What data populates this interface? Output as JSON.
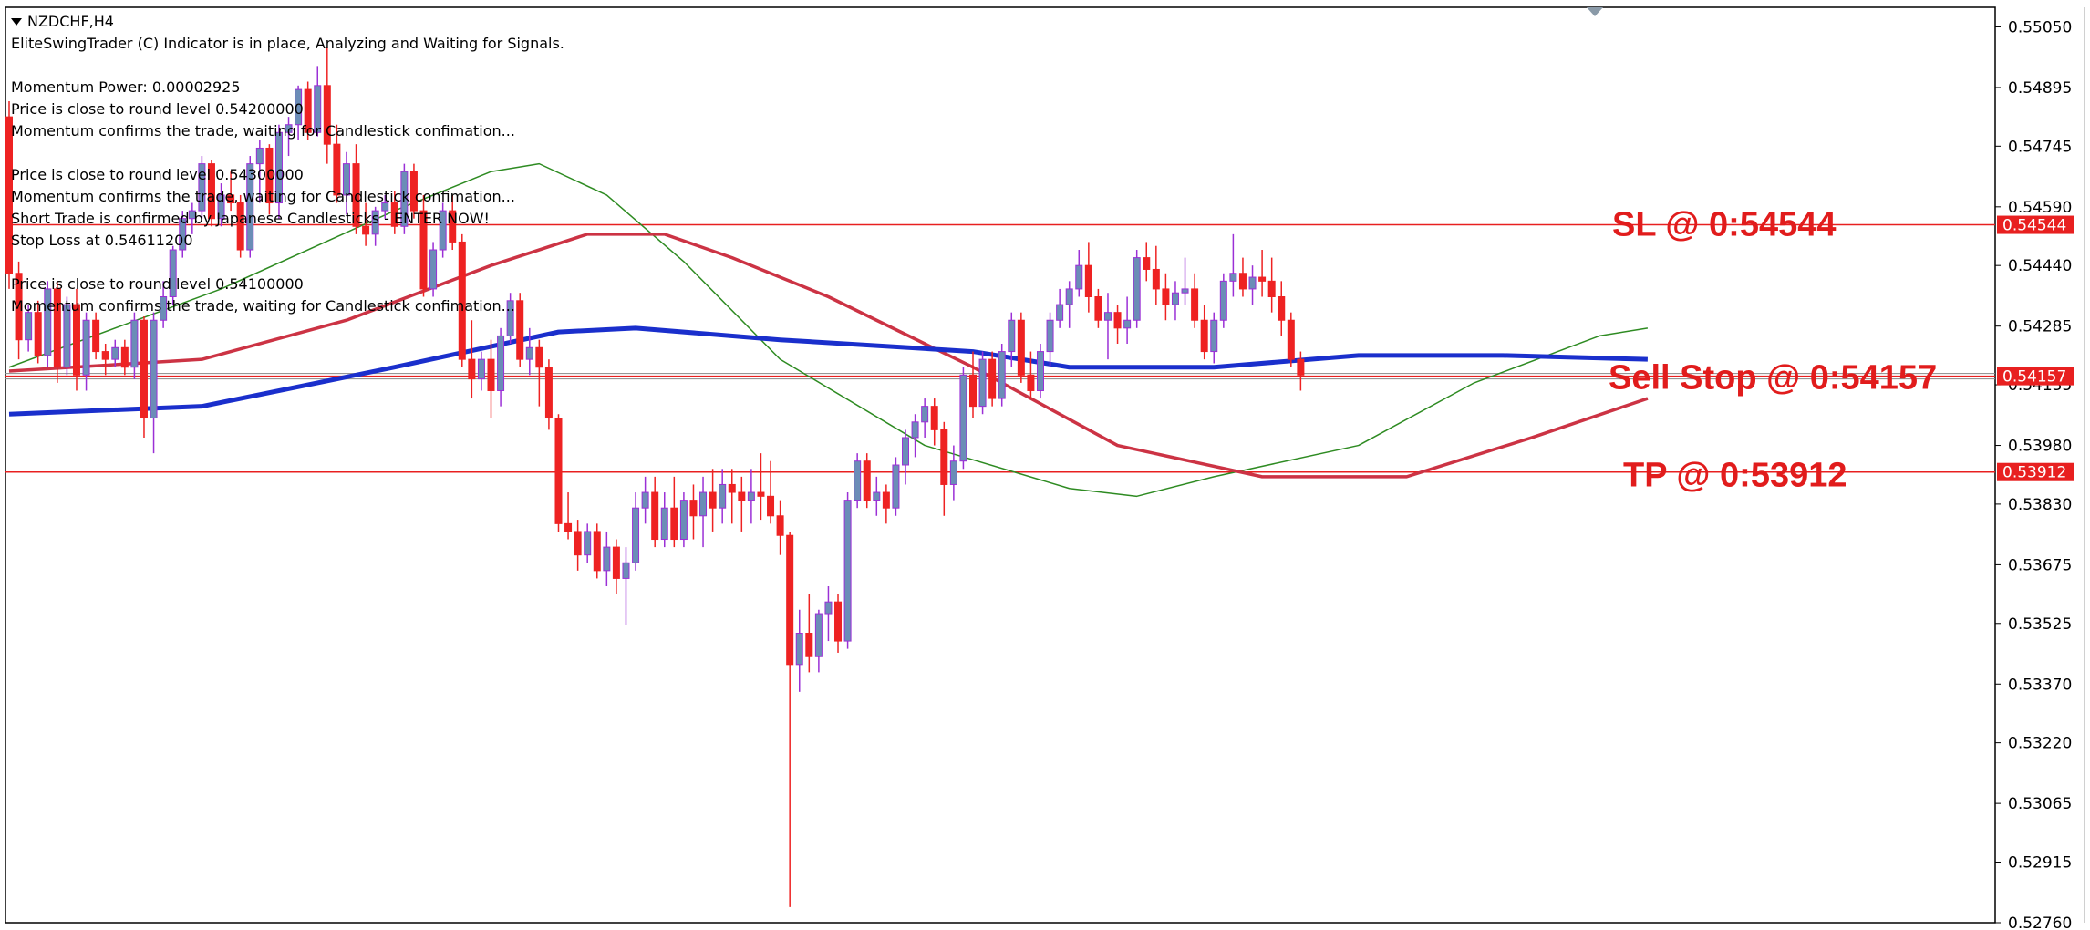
{
  "window": {
    "symbol": "NZDCHF,H4",
    "symbol_icon": "triangle-down-icon"
  },
  "info_lines": {
    "l1": "EliteSwingTrader (C) Indicator is in place, Analyzing and Waiting for Signals.",
    "l2": "Momentum Power: 0.00002925",
    "l3": "Price is close to round level 0.54200000",
    "l4": "Momentum confirms the trade, waiting for Candlestick confimation...",
    "l5": "Price is close to round level 0.54300000",
    "l6": "Momentum confirms the trade, waiting for Candlestick confimation...",
    "l7": "Short Trade is confirmed by Japanese Candlesticks - ENTER NOW!",
    "l8": "Stop Loss at 0.54611200",
    "l9": "Price is close to round level 0.54100000",
    "l10": "Momentum confirms the trade, waiting for Candlestick confimation..."
  },
  "chart_data": {
    "type": "candlestick",
    "symbol": "NZDCHF",
    "timeframe": "H4",
    "ylim": [
      0.5276,
      0.551
    ],
    "y_ticks": [
      "0.55050",
      "0.54895",
      "0.54745",
      "0.54590",
      "0.54440",
      "0.54285",
      "0.54135",
      "0.53980",
      "0.53830",
      "0.53675",
      "0.53525",
      "0.53370",
      "0.53220",
      "0.53065",
      "0.52915",
      "0.52760"
    ],
    "levels": [
      {
        "name": "SL",
        "label": "SL @ 0:54544",
        "value": 0.54544,
        "price_tag": "0.54544"
      },
      {
        "name": "Sell Stop",
        "label": "Sell Stop @ 0:54157",
        "value": 0.54157,
        "price_tag": "0.54157"
      },
      {
        "name": "TP",
        "label": "TP @ 0:53912",
        "value": 0.53912,
        "price_tag": "0.53912"
      }
    ],
    "candles": [
      [
        0.5482,
        0.5486,
        0.5438,
        0.5442
      ],
      [
        0.5442,
        0.5445,
        0.542,
        0.5425
      ],
      [
        0.5425,
        0.5434,
        0.5422,
        0.5432
      ],
      [
        0.5432,
        0.5435,
        0.5419,
        0.5421
      ],
      [
        0.5421,
        0.544,
        0.5418,
        0.5438
      ],
      [
        0.5438,
        0.544,
        0.5414,
        0.5418
      ],
      [
        0.5418,
        0.5436,
        0.5416,
        0.5434
      ],
      [
        0.5434,
        0.5438,
        0.5412,
        0.5416
      ],
      [
        0.5416,
        0.5432,
        0.5412,
        0.543
      ],
      [
        0.543,
        0.5432,
        0.542,
        0.5422
      ],
      [
        0.5422,
        0.5424,
        0.5416,
        0.542
      ],
      [
        0.542,
        0.5425,
        0.5418,
        0.5423
      ],
      [
        0.5423,
        0.5425,
        0.5416,
        0.5418
      ],
      [
        0.5418,
        0.5432,
        0.5415,
        0.543
      ],
      [
        0.543,
        0.5431,
        0.54,
        0.5405
      ],
      [
        0.5405,
        0.5432,
        0.5396,
        0.543
      ],
      [
        0.543,
        0.544,
        0.5428,
        0.5436
      ],
      [
        0.5436,
        0.5449,
        0.5434,
        0.5448
      ],
      [
        0.5448,
        0.5458,
        0.5446,
        0.5456
      ],
      [
        0.5456,
        0.546,
        0.5452,
        0.5458
      ],
      [
        0.5458,
        0.5472,
        0.5456,
        0.547
      ],
      [
        0.547,
        0.5471,
        0.5454,
        0.5456
      ],
      [
        0.5456,
        0.5465,
        0.5454,
        0.5462
      ],
      [
        0.5462,
        0.5468,
        0.5458,
        0.546
      ],
      [
        0.546,
        0.5462,
        0.5446,
        0.5448
      ],
      [
        0.5448,
        0.5472,
        0.5446,
        0.547
      ],
      [
        0.547,
        0.5476,
        0.546,
        0.5474
      ],
      [
        0.5474,
        0.5475,
        0.5457,
        0.546
      ],
      [
        0.546,
        0.548,
        0.5456,
        0.5478
      ],
      [
        0.5478,
        0.5482,
        0.5472,
        0.548
      ],
      [
        0.548,
        0.549,
        0.5476,
        0.5489
      ],
      [
        0.5489,
        0.5491,
        0.5476,
        0.5478
      ],
      [
        0.5478,
        0.5495,
        0.5477,
        0.549
      ],
      [
        0.549,
        0.55,
        0.547,
        0.5475
      ],
      [
        0.5475,
        0.548,
        0.546,
        0.5462
      ],
      [
        0.5462,
        0.5473,
        0.5457,
        0.547
      ],
      [
        0.547,
        0.5475,
        0.5452,
        0.5454
      ],
      [
        0.5454,
        0.546,
        0.5449,
        0.5452
      ],
      [
        0.5452,
        0.5459,
        0.5449,
        0.5458
      ],
      [
        0.5458,
        0.5462,
        0.5456,
        0.546
      ],
      [
        0.546,
        0.5463,
        0.5452,
        0.5454
      ],
      [
        0.5454,
        0.547,
        0.5452,
        0.5468
      ],
      [
        0.5468,
        0.547,
        0.5456,
        0.5458
      ],
      [
        0.5458,
        0.5462,
        0.5436,
        0.5438
      ],
      [
        0.5438,
        0.545,
        0.5436,
        0.5448
      ],
      [
        0.5448,
        0.546,
        0.5446,
        0.5458
      ],
      [
        0.5458,
        0.5462,
        0.5448,
        0.545
      ],
      [
        0.545,
        0.5452,
        0.5418,
        0.542
      ],
      [
        0.542,
        0.543,
        0.541,
        0.5415
      ],
      [
        0.5415,
        0.5422,
        0.5412,
        0.542
      ],
      [
        0.542,
        0.5425,
        0.5405,
        0.5412
      ],
      [
        0.5412,
        0.5428,
        0.5408,
        0.5426
      ],
      [
        0.5426,
        0.5437,
        0.5424,
        0.5435
      ],
      [
        0.5435,
        0.5437,
        0.5418,
        0.542
      ],
      [
        0.542,
        0.5428,
        0.5416,
        0.5423
      ],
      [
        0.5423,
        0.5425,
        0.5408,
        0.5418
      ],
      [
        0.5418,
        0.542,
        0.5402,
        0.5405
      ],
      [
        0.5405,
        0.5406,
        0.5376,
        0.5378
      ],
      [
        0.5378,
        0.5386,
        0.5374,
        0.5376
      ],
      [
        0.5376,
        0.5379,
        0.5366,
        0.537
      ],
      [
        0.537,
        0.5378,
        0.5368,
        0.5376
      ],
      [
        0.5376,
        0.5378,
        0.5364,
        0.5366
      ],
      [
        0.5366,
        0.5376,
        0.5362,
        0.5372
      ],
      [
        0.5372,
        0.5374,
        0.536,
        0.5364
      ],
      [
        0.5364,
        0.5372,
        0.5352,
        0.5368
      ],
      [
        0.5368,
        0.5386,
        0.5366,
        0.5382
      ],
      [
        0.5382,
        0.539,
        0.5378,
        0.5386
      ],
      [
        0.5386,
        0.539,
        0.5372,
        0.5374
      ],
      [
        0.5374,
        0.5386,
        0.5372,
        0.5382
      ],
      [
        0.5382,
        0.539,
        0.5372,
        0.5374
      ],
      [
        0.5374,
        0.5386,
        0.5372,
        0.5384
      ],
      [
        0.5384,
        0.5388,
        0.5374,
        0.538
      ],
      [
        0.538,
        0.539,
        0.5372,
        0.5386
      ],
      [
        0.5386,
        0.5392,
        0.5376,
        0.5382
      ],
      [
        0.5382,
        0.5392,
        0.5378,
        0.5388
      ],
      [
        0.5388,
        0.5392,
        0.5378,
        0.5386
      ],
      [
        0.5386,
        0.539,
        0.5376,
        0.5384
      ],
      [
        0.5384,
        0.5392,
        0.5378,
        0.5386
      ],
      [
        0.5386,
        0.5396,
        0.5379,
        0.5385
      ],
      [
        0.5385,
        0.5394,
        0.5378,
        0.538
      ],
      [
        0.538,
        0.5384,
        0.537,
        0.5375
      ],
      [
        0.5375,
        0.5376,
        0.528,
        0.5342
      ],
      [
        0.5342,
        0.5356,
        0.5335,
        0.535
      ],
      [
        0.535,
        0.536,
        0.534,
        0.5344
      ],
      [
        0.5344,
        0.5356,
        0.534,
        0.5355
      ],
      [
        0.5355,
        0.5362,
        0.5348,
        0.5358
      ],
      [
        0.5358,
        0.536,
        0.5345,
        0.5348
      ],
      [
        0.5348,
        0.5386,
        0.5346,
        0.5384
      ],
      [
        0.5384,
        0.5396,
        0.5382,
        0.5394
      ],
      [
        0.5394,
        0.5396,
        0.5382,
        0.5384
      ],
      [
        0.5384,
        0.539,
        0.538,
        0.5386
      ],
      [
        0.5386,
        0.5388,
        0.5378,
        0.5382
      ],
      [
        0.5382,
        0.5395,
        0.538,
        0.5393
      ],
      [
        0.5393,
        0.5402,
        0.5388,
        0.54
      ],
      [
        0.54,
        0.5406,
        0.5395,
        0.5404
      ],
      [
        0.5404,
        0.541,
        0.54,
        0.5408
      ],
      [
        0.5408,
        0.541,
        0.5398,
        0.5402
      ],
      [
        0.5402,
        0.5404,
        0.538,
        0.5388
      ],
      [
        0.5388,
        0.5398,
        0.5384,
        0.5394
      ],
      [
        0.5394,
        0.5418,
        0.5392,
        0.5416
      ],
      [
        0.5416,
        0.5422,
        0.5405,
        0.5408
      ],
      [
        0.5408,
        0.5422,
        0.5406,
        0.542
      ],
      [
        0.542,
        0.5422,
        0.5408,
        0.541
      ],
      [
        0.541,
        0.5424,
        0.5408,
        0.5422
      ],
      [
        0.5422,
        0.5432,
        0.5418,
        0.543
      ],
      [
        0.543,
        0.5432,
        0.5414,
        0.5416
      ],
      [
        0.5416,
        0.5422,
        0.541,
        0.5412
      ],
      [
        0.5412,
        0.5424,
        0.541,
        0.5422
      ],
      [
        0.5422,
        0.5432,
        0.5418,
        0.543
      ],
      [
        0.543,
        0.5438,
        0.5428,
        0.5434
      ],
      [
        0.5434,
        0.544,
        0.5428,
        0.5438
      ],
      [
        0.5438,
        0.5448,
        0.5436,
        0.5444
      ],
      [
        0.5444,
        0.545,
        0.5432,
        0.5436
      ],
      [
        0.5436,
        0.5438,
        0.5428,
        0.543
      ],
      [
        0.543,
        0.5437,
        0.542,
        0.5432
      ],
      [
        0.5432,
        0.5434,
        0.5424,
        0.5428
      ],
      [
        0.5428,
        0.5436,
        0.5424,
        0.543
      ],
      [
        0.543,
        0.5448,
        0.5428,
        0.5446
      ],
      [
        0.5446,
        0.545,
        0.544,
        0.5443
      ],
      [
        0.5443,
        0.5449,
        0.5434,
        0.5438
      ],
      [
        0.5438,
        0.5442,
        0.543,
        0.5434
      ],
      [
        0.5434,
        0.544,
        0.543,
        0.5437
      ],
      [
        0.5437,
        0.5446,
        0.5434,
        0.5438
      ],
      [
        0.5438,
        0.5442,
        0.5428,
        0.543
      ],
      [
        0.543,
        0.5434,
        0.542,
        0.5422
      ],
      [
        0.5422,
        0.5432,
        0.5419,
        0.543
      ],
      [
        0.543,
        0.5442,
        0.5428,
        0.544
      ],
      [
        0.544,
        0.5452,
        0.5436,
        0.5442
      ],
      [
        0.5442,
        0.5446,
        0.5436,
        0.5438
      ],
      [
        0.5438,
        0.5444,
        0.5434,
        0.5441
      ],
      [
        0.5441,
        0.5448,
        0.5436,
        0.544
      ],
      [
        0.544,
        0.5446,
        0.5432,
        0.5436
      ],
      [
        0.5436,
        0.544,
        0.5426,
        0.543
      ],
      [
        0.543,
        0.5432,
        0.5418,
        0.542
      ],
      [
        0.542,
        0.5422,
        0.5412,
        0.5416
      ]
    ],
    "moving_averages": [
      {
        "color": "#2e8b22",
        "values": [
          [
            0,
            0.5418
          ],
          [
            22,
            0.5438
          ],
          [
            40,
            0.5458
          ],
          [
            50,
            0.5468
          ],
          [
            55,
            0.547
          ],
          [
            62,
            0.5462
          ],
          [
            70,
            0.5445
          ],
          [
            80,
            0.542
          ],
          [
            95,
            0.5398
          ],
          [
            110,
            0.5387
          ],
          [
            117,
            0.5385
          ],
          [
            125,
            0.539
          ],
          [
            140,
            0.5398
          ],
          [
            152,
            0.5414
          ],
          [
            165,
            0.5426
          ],
          [
            170,
            0.5428
          ]
        ]
      },
      {
        "color": "#cc3344",
        "values": [
          [
            0,
            0.5417
          ],
          [
            20,
            0.542
          ],
          [
            35,
            0.543
          ],
          [
            50,
            0.5444
          ],
          [
            60,
            0.5452
          ],
          [
            68,
            0.5452
          ],
          [
            75,
            0.5446
          ],
          [
            85,
            0.5436
          ],
          [
            100,
            0.5418
          ],
          [
            115,
            0.5398
          ],
          [
            130,
            0.539
          ],
          [
            145,
            0.539
          ],
          [
            158,
            0.54
          ],
          [
            170,
            0.541
          ]
        ]
      },
      {
        "color": "#1a2fcc",
        "values": [
          [
            0,
            0.5406
          ],
          [
            20,
            0.5408
          ],
          [
            40,
            0.5418
          ],
          [
            57,
            0.5427
          ],
          [
            65,
            0.5428
          ],
          [
            80,
            0.5425
          ],
          [
            100,
            0.5422
          ],
          [
            110,
            0.5418
          ],
          [
            125,
            0.5418
          ],
          [
            140,
            0.5421
          ],
          [
            155,
            0.5421
          ],
          [
            170,
            0.542
          ]
        ]
      }
    ]
  },
  "colors": {
    "bull": "#6b8db7",
    "bull_wick": "#9b30d6",
    "bear": "#ee2222",
    "level_line": "#e82020",
    "level_text": "#e11c1c",
    "price_tag_bg": "#e82020",
    "price_tag_text": "#ffffff",
    "axis_text": "#000000",
    "grey_line": "#888888"
  }
}
